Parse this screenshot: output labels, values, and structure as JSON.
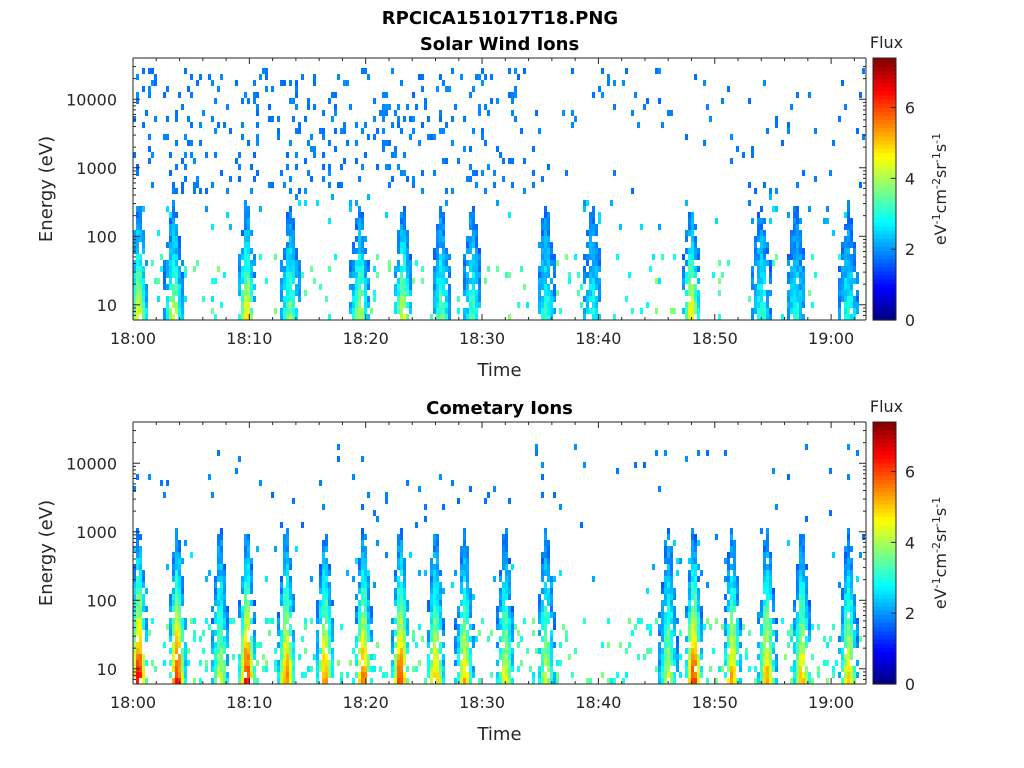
{
  "figure": {
    "title": "RPCICA151017T18.PNG"
  },
  "chart_data": [
    {
      "type": "heatmap",
      "title": "Solar Wind Ions",
      "xlabel": "Time",
      "ylabel": "Energy (eV)",
      "x_ticks": [
        "18:00",
        "18:10",
        "18:20",
        "18:30",
        "18:40",
        "18:50",
        "19:00"
      ],
      "x_tick_minutes": [
        0,
        10,
        20,
        30,
        40,
        50,
        60
      ],
      "xlim_minutes": [
        0,
        63
      ],
      "y_scale": "log",
      "y_ticks": [
        "10",
        "100",
        "1000",
        "10000"
      ],
      "y_tick_values": [
        10,
        100,
        1000,
        10000
      ],
      "ylim": [
        6,
        40000
      ],
      "colorbar": {
        "title": "Flux",
        "label": "eV-1cm-2sr-1s-1",
        "label_parts": [
          {
            "t": "eV",
            "sup": "-1"
          },
          {
            "t": "cm",
            "sup": "-2"
          },
          {
            "t": "sr",
            "sup": "-1"
          },
          {
            "t": "s",
            "sup": "-1"
          }
        ],
        "ticks": [
          "0",
          "2",
          "4",
          "6"
        ],
        "tick_values": [
          0,
          2,
          4,
          6
        ],
        "range": [
          0,
          7.4
        ],
        "colormap": "jet"
      },
      "activity_profile": {
        "bursts_minutes": [
          0.5,
          3.5,
          9.8,
          13.5,
          19.5,
          23.2,
          26.5,
          29.2,
          35.5,
          39.5,
          48.0,
          54.0,
          57.0,
          61.5
        ],
        "burst_peak_flux": [
          4.6,
          4.4,
          4.8,
          3.8,
          4.2,
          4.5,
          3.6,
          3.4,
          3.2,
          3.0,
          4.9,
          3.2,
          3.0,
          3.1
        ],
        "high_energy_band_eV": [
          400,
          30000
        ],
        "high_energy_flux": 1.7
      }
    },
    {
      "type": "heatmap",
      "title": "Cometary Ions",
      "xlabel": "Time",
      "ylabel": "Energy (eV)",
      "x_ticks": [
        "18:00",
        "18:10",
        "18:20",
        "18:30",
        "18:40",
        "18:50",
        "19:00"
      ],
      "x_tick_minutes": [
        0,
        10,
        20,
        30,
        40,
        50,
        60
      ],
      "xlim_minutes": [
        0,
        63
      ],
      "y_scale": "log",
      "y_ticks": [
        "10",
        "100",
        "1000",
        "10000"
      ],
      "y_tick_values": [
        10,
        100,
        1000,
        10000
      ],
      "ylim": [
        6,
        40000
      ],
      "colorbar": {
        "title": "Flux",
        "label": "eV-1cm-2sr-1s-1",
        "label_parts": [
          {
            "t": "eV",
            "sup": "-1"
          },
          {
            "t": "cm",
            "sup": "-2"
          },
          {
            "t": "sr",
            "sup": "-1"
          },
          {
            "t": "s",
            "sup": "-1"
          }
        ],
        "ticks": [
          "0",
          "2",
          "4",
          "6"
        ],
        "tick_values": [
          0,
          2,
          4,
          6
        ],
        "range": [
          0,
          7.4
        ],
        "colormap": "jet"
      },
      "activity_profile": {
        "bursts_minutes": [
          0.5,
          3.8,
          7.5,
          9.8,
          13.2,
          16.5,
          19.8,
          23.0,
          26.0,
          28.5,
          32.0,
          35.5,
          46.0,
          48.2,
          51.5,
          54.5,
          57.5,
          61.5
        ],
        "burst_peak_flux": [
          6.8,
          6.6,
          4.4,
          6.6,
          5.8,
          5.6,
          5.9,
          6.3,
          5.2,
          5.2,
          4.6,
          4.3,
          4.4,
          6.4,
          5.4,
          5.4,
          5.2,
          5.0
        ],
        "high_energy_band_eV": [
          800,
          20000
        ],
        "high_energy_flux": 1.7
      }
    }
  ]
}
